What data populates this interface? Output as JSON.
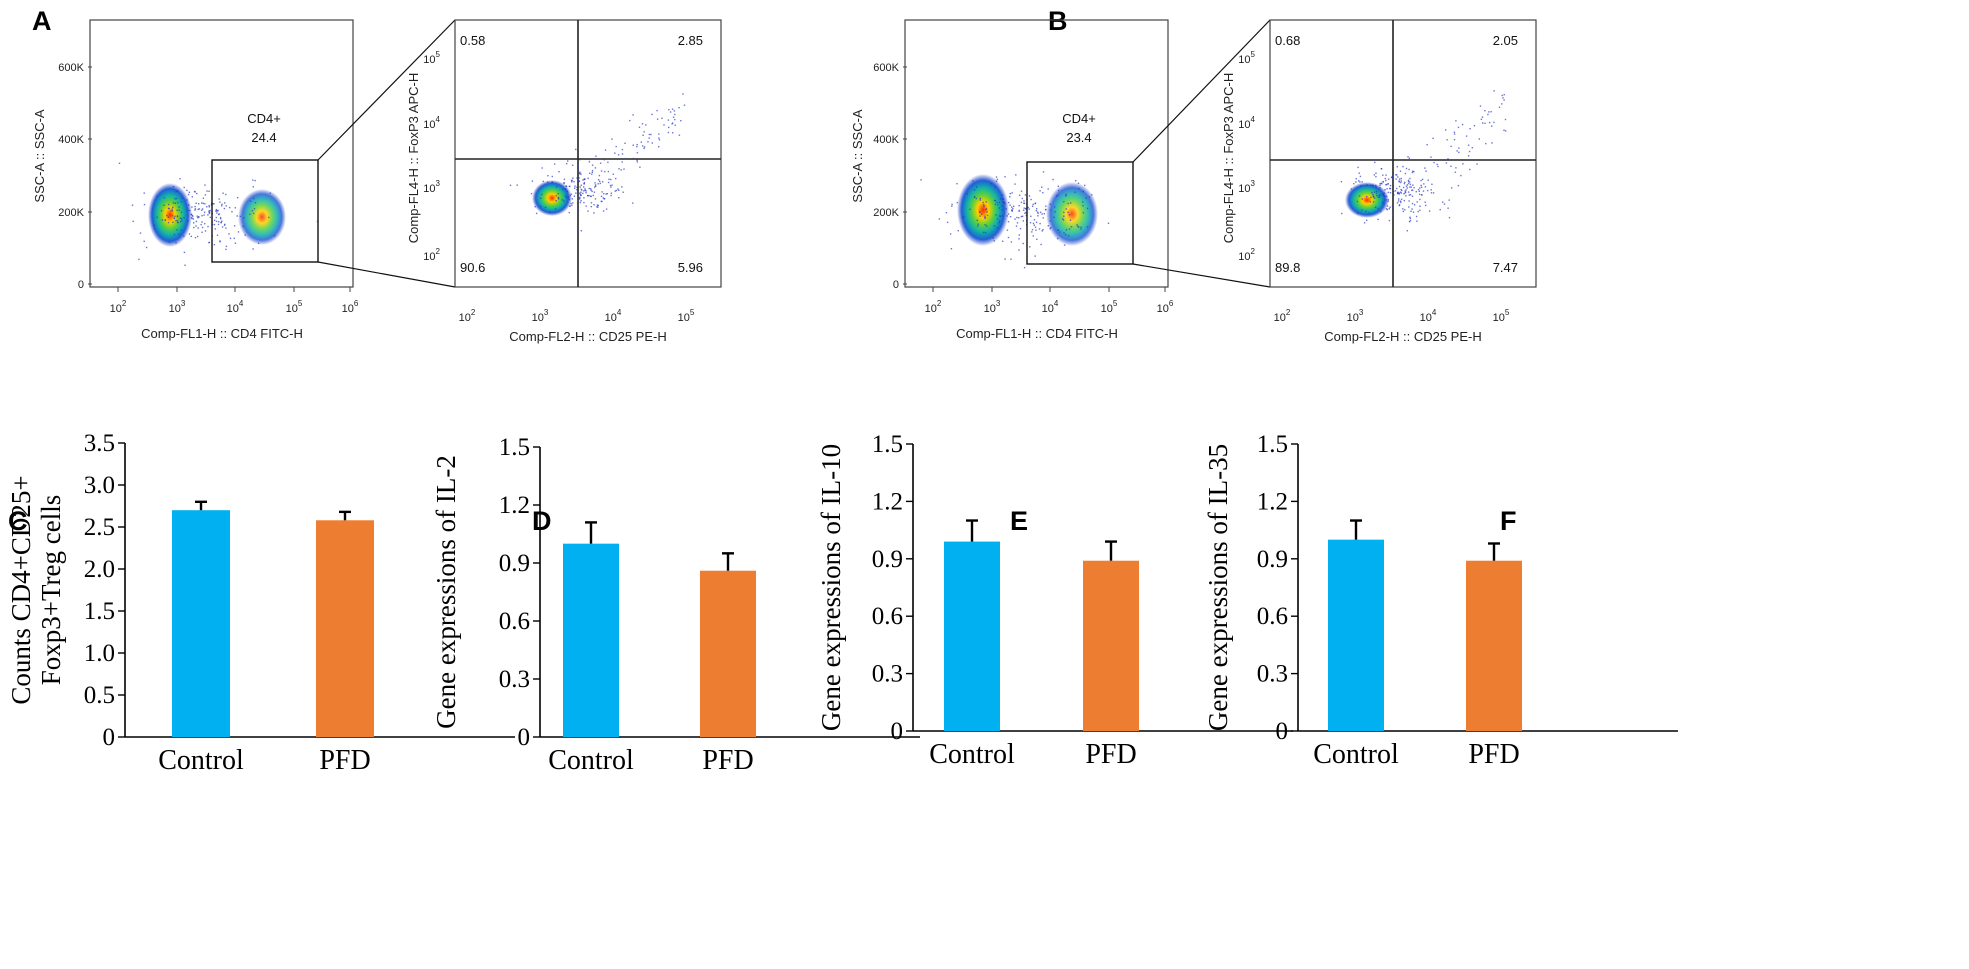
{
  "panels": {
    "A": "A",
    "B": "B",
    "C": "C",
    "D": "D",
    "E": "E",
    "F": "F"
  },
  "flow": [
    {
      "panel": "A",
      "scatter1": {
        "ylabel": "SSC-A :: SSC-A",
        "xlabel": "Comp-FL1-H :: CD4 FITC-H",
        "yticks": [
          "0",
          "200K",
          "400K",
          "600K"
        ],
        "xticks": [
          {
            "base": "10",
            "exp": "2"
          },
          {
            "base": "10",
            "exp": "3"
          },
          {
            "base": "10",
            "exp": "4"
          },
          {
            "base": "10",
            "exp": "5"
          },
          {
            "base": "10",
            "exp": "6"
          }
        ],
        "gate_name": "CD4+",
        "gate_value": "24.4"
      },
      "scatter2": {
        "ylabel": "Comp-FL4-H :: FoxP3 APC-H",
        "xlabel": "Comp-FL2-H :: CD25 PE-H",
        "yticks": [
          {
            "base": "10",
            "exp": "2"
          },
          {
            "base": "10",
            "exp": "3"
          },
          {
            "base": "10",
            "exp": "4"
          },
          {
            "base": "10",
            "exp": "5"
          }
        ],
        "xticks": [
          {
            "base": "10",
            "exp": "2"
          },
          {
            "base": "10",
            "exp": "3"
          },
          {
            "base": "10",
            "exp": "4"
          },
          {
            "base": "10",
            "exp": "5"
          }
        ],
        "quadrants": {
          "ul": "0.58",
          "ur": "2.85",
          "ll": "90.6",
          "lr": "5.96"
        }
      }
    },
    {
      "panel": "B",
      "scatter1": {
        "ylabel": "SSC-A :: SSC-A",
        "xlabel": "Comp-FL1-H :: CD4 FITC-H",
        "yticks": [
          "0",
          "200K",
          "400K",
          "600K"
        ],
        "xticks": [
          {
            "base": "10",
            "exp": "2"
          },
          {
            "base": "10",
            "exp": "3"
          },
          {
            "base": "10",
            "exp": "4"
          },
          {
            "base": "10",
            "exp": "5"
          },
          {
            "base": "10",
            "exp": "6"
          }
        ],
        "gate_name": "CD4+",
        "gate_value": "23.4"
      },
      "scatter2": {
        "ylabel": "Comp-FL4-H :: FoxP3 APC-H",
        "xlabel": "Comp-FL2-H :: CD25 PE-H",
        "yticks": [
          {
            "base": "10",
            "exp": "2"
          },
          {
            "base": "10",
            "exp": "3"
          },
          {
            "base": "10",
            "exp": "4"
          },
          {
            "base": "10",
            "exp": "5"
          }
        ],
        "xticks": [
          {
            "base": "10",
            "exp": "2"
          },
          {
            "base": "10",
            "exp": "3"
          },
          {
            "base": "10",
            "exp": "4"
          },
          {
            "base": "10",
            "exp": "5"
          }
        ],
        "quadrants": {
          "ul": "0.68",
          "ur": "2.05",
          "ll": "89.8",
          "lr": "7.47"
        }
      }
    }
  ],
  "colors": {
    "control": "#00b0f0",
    "pfd": "#ed7d31",
    "error": "#000000",
    "dots": "#2b3bc4"
  },
  "chart_data": [
    {
      "panel": "C",
      "type": "bar",
      "categories": [
        "Control",
        "PFD"
      ],
      "values": [
        2.7,
        2.58
      ],
      "errors": [
        0.1,
        0.1
      ],
      "ylabel_lines": [
        "Counts CD4+CD25+",
        "Foxp3+Treg cells"
      ],
      "ylim": [
        0,
        3.5
      ],
      "yticks": [
        "0",
        "0.5",
        "1.0",
        "1.5",
        "2.0",
        "2.5",
        "3.0",
        "3.5"
      ]
    },
    {
      "panel": "D",
      "type": "bar",
      "categories": [
        "Control",
        "PFD"
      ],
      "values": [
        1.0,
        0.86
      ],
      "errors": [
        0.11,
        0.09
      ],
      "ylabel_lines": [
        "Gene expressions of IL-2"
      ],
      "ylim": [
        0,
        1.5
      ],
      "yticks": [
        "0",
        "0.3",
        "0.6",
        "0.9",
        "1.2",
        "1.5"
      ]
    },
    {
      "panel": "E",
      "type": "bar",
      "categories": [
        "Control",
        "PFD"
      ],
      "values": [
        0.99,
        0.89
      ],
      "errors": [
        0.11,
        0.1
      ],
      "ylabel_lines": [
        "Gene expressions of IL-10"
      ],
      "ylim": [
        0,
        1.5
      ],
      "yticks": [
        "0",
        "0.3",
        "0.6",
        "0.9",
        "1.2",
        "1.5"
      ]
    },
    {
      "panel": "F",
      "type": "bar",
      "categories": [
        "Control",
        "PFD"
      ],
      "values": [
        1.0,
        0.89
      ],
      "errors": [
        0.1,
        0.09
      ],
      "ylabel_lines": [
        "Gene expressions of IL-35"
      ],
      "ylim": [
        0,
        1.5
      ],
      "yticks": [
        "0",
        "0.3",
        "0.6",
        "0.9",
        "1.2",
        "1.5"
      ]
    }
  ]
}
